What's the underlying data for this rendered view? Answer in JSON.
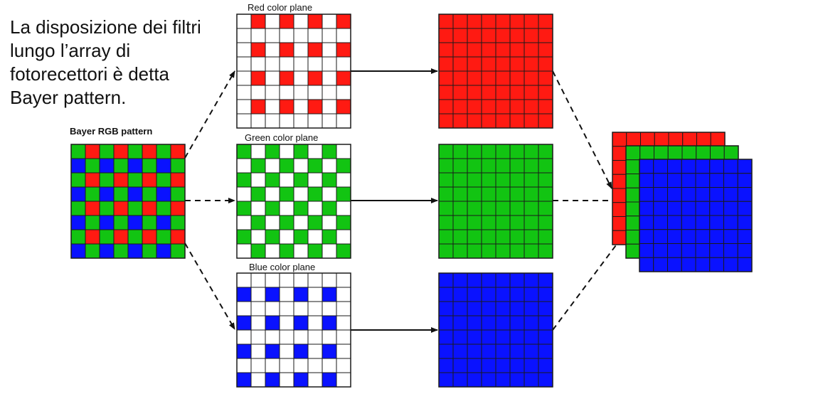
{
  "caption": "La disposizione dei filtri\nlungo l’array di\nfotorecettori è detta\nBayer pattern.",
  "labels": {
    "bayer": "Bayer RGB pattern",
    "red_plane": "Red color plane",
    "green_plane": "Green color plane",
    "blue_plane": "Blue color plane"
  },
  "grid_size": 8,
  "colors": {
    "red": "#ff1a12",
    "green": "#12c412",
    "blue": "#0a12ff",
    "empty": "#ffffff",
    "line": "#1a1a1a"
  }
}
